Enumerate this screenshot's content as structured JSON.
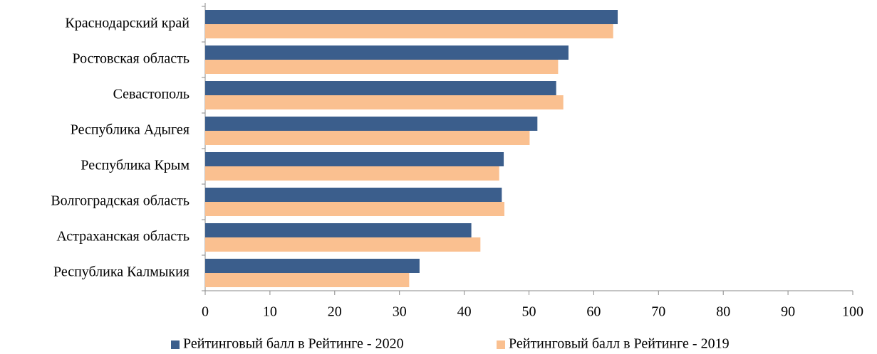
{
  "chart_data": {
    "type": "bar",
    "orientation": "horizontal",
    "categories": [
      "Краснодарский край",
      "Ростовская область",
      "Севастополь",
      "Республика Адыгея",
      "Республика Крым",
      "Волгоградская область",
      "Астраханская область",
      "Республика Калмыкия"
    ],
    "series": [
      {
        "name": "Рейтинговый балл в Рейтинге - 2020",
        "color": "#3b5e8c",
        "values": [
          63.7,
          56.1,
          54.2,
          51.3,
          46.1,
          45.8,
          41.1,
          33.1
        ]
      },
      {
        "name": "Рейтинговый балл в Рейтинге - 2019",
        "color": "#fac090",
        "values": [
          63.0,
          54.5,
          55.3,
          50.1,
          45.4,
          46.2,
          42.5,
          31.5
        ]
      }
    ],
    "xlim": [
      0,
      100
    ],
    "xticks": [
      0,
      10,
      20,
      30,
      40,
      50,
      60,
      70,
      80,
      90,
      100
    ],
    "legend": "bottom"
  }
}
